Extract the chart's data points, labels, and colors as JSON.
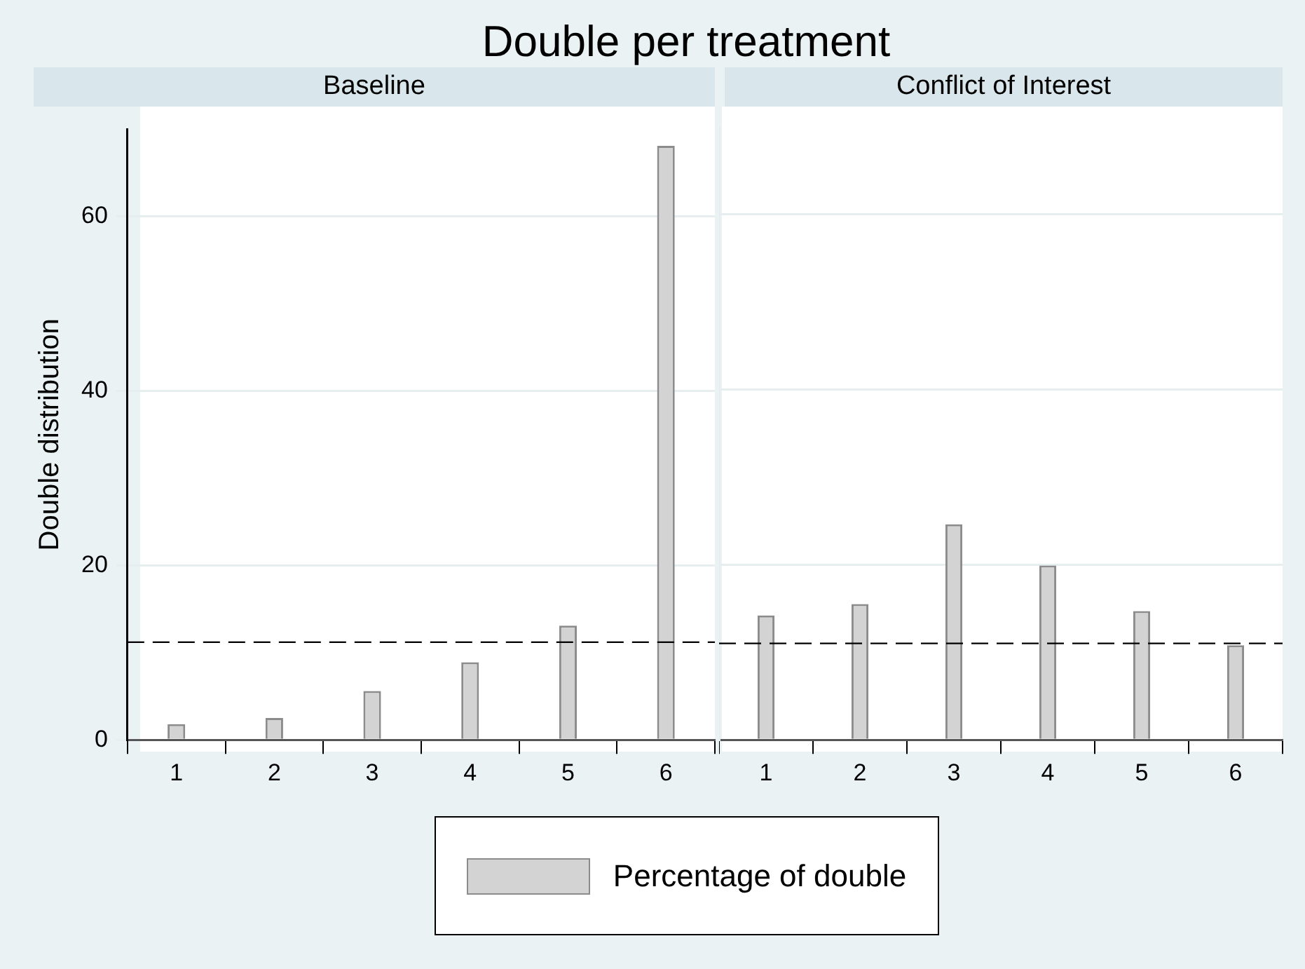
{
  "chart_data": [
    {
      "type": "bar",
      "title": "Double per treatment",
      "subtitle": "Baseline",
      "ylabel": "Double distribution",
      "categories": [
        "1",
        "2",
        "3",
        "4",
        "5",
        "6"
      ],
      "series": [
        {
          "name": "Percentage of double",
          "color": "#d3d3d3",
          "values": [
            1.8,
            2.5,
            5.6,
            8.9,
            13.1,
            68.1
          ]
        }
      ],
      "ylim": [
        0,
        70
      ],
      "yticks": [
        0,
        20,
        40,
        60
      ],
      "grid": "y",
      "legend": "bottom",
      "ref_lines": [
        {
          "axis": "y",
          "value": 11.2,
          "line_style": "dashed"
        }
      ]
    },
    {
      "type": "bar",
      "subtitle": "Conflict of Interest",
      "categories": [
        "1",
        "2",
        "3",
        "4",
        "5",
        "6"
      ],
      "series": [
        {
          "color": "#d3d3d3",
          "values": [
            14.2,
            15.5,
            24.6,
            19.9,
            14.7,
            10.8
          ]
        }
      ],
      "ylim": [
        0,
        70
      ],
      "yticks": [
        0,
        20,
        40,
        60
      ],
      "grid": "y",
      "tick_labels": "x",
      "ref_lines": [
        {
          "axis": "y",
          "value": 11.0,
          "line_style": "dashed"
        }
      ]
    }
  ]
}
